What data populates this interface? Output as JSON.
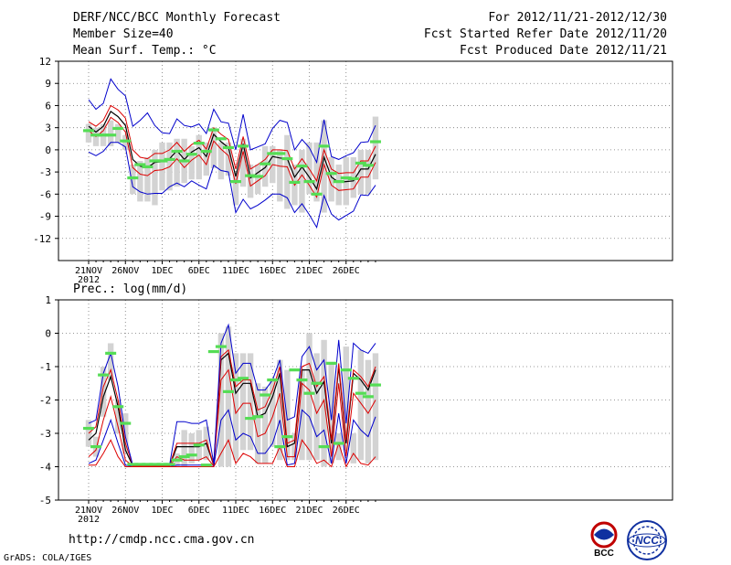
{
  "header": {
    "title": "DERF/NCC/BCC Monthly Forecast",
    "member_size": "Member Size=40",
    "variable": "Mean Surf. Temp.: °C",
    "period": "For 2012/11/21-2012/12/30",
    "fcst_started": "Fcst Started Refer Date 2012/11/20",
    "fcst_produced": "Fcst Produced Date 2012/11/21"
  },
  "footer": {
    "url": "http://cmdp.ncc.cma.gov.cn",
    "grads": "GrADS: COLA/IGES",
    "logo_bcc": "BCC",
    "logo_ncc": "NCC"
  },
  "colors": {
    "box": "#d3d3d3",
    "median": "#55dd55",
    "ensemble_mean": "#000000",
    "band_inner": "#dd0000",
    "band_outer": "#0000cc",
    "grid": "#777777"
  },
  "chart_data": [
    {
      "type": "box-ensemble",
      "title": "Mean Surf. Temp.: °C",
      "ylabel": "°C",
      "ylim": [
        -15,
        12
      ],
      "yticks": [
        -12,
        -9,
        -6,
        -3,
        0,
        3,
        6,
        9,
        12
      ],
      "xtick_labels": [
        "21NOV",
        "26NOV",
        "1DEC",
        "6DEC",
        "11DEC",
        "16DEC",
        "21DEC",
        "26DEC"
      ],
      "xtick_days": [
        0,
        5,
        10,
        15,
        20,
        25,
        30,
        35
      ],
      "year_label": "2012",
      "days": 40,
      "box_low": [
        1,
        0.5,
        0.5,
        0.5,
        1,
        0,
        -6,
        -7,
        -7,
        -7.5,
        -5.5,
        -5.5,
        -5,
        -4.5,
        -4,
        -4,
        -3.5,
        -2.5,
        -4,
        -3.5,
        -7.5,
        -5,
        -6.5,
        -6,
        -5,
        -4.5,
        -7,
        -8,
        -7.5,
        -8.5,
        -6,
        -7,
        -8.5,
        -7,
        -7.5,
        -7.5,
        -6.5,
        -6,
        -6,
        -4
      ],
      "box_high": [
        3.5,
        3,
        3.5,
        4,
        3.5,
        2,
        -2,
        -1.5,
        -1,
        0,
        1,
        1,
        1.5,
        1.5,
        0.5,
        2,
        1,
        3,
        1,
        1,
        -3,
        1.5,
        -2,
        -2,
        0.5,
        0.5,
        0,
        2,
        -2,
        0,
        1,
        1,
        4,
        -1,
        -2,
        -1,
        -1,
        0,
        0,
        4.5
      ],
      "median": [
        2.6,
        2,
        2,
        2,
        2.9,
        1.2,
        -3.8,
        -2,
        -2.3,
        -1.5,
        -1.5,
        -1.3,
        -0.2,
        -1.5,
        -0.6,
        0.9,
        -0.2,
        2.7,
        1.5,
        0.3,
        -4.3,
        0.5,
        -3.5,
        -3.6,
        -1.9,
        -0.5,
        -0.5,
        -1.2,
        -4.4,
        -2.2,
        -4.3,
        -6,
        0.5,
        -3.2,
        -4.3,
        -3.8,
        -3.9,
        -1.8,
        -2.1,
        1.1
      ],
      "series": [
        {
          "name": "mean",
          "values": [
            3.2,
            2.4,
            3.2,
            5.2,
            4.5,
            3.3,
            -1.3,
            -2.2,
            -2.4,
            -1.7,
            -1.6,
            -1.2,
            -0.1,
            -1.3,
            -0.3,
            0.3,
            -0.9,
            2.1,
            1.1,
            0.3,
            -3.6,
            0.8,
            -3.8,
            -3.1,
            -2.4,
            -0.9,
            -1.1,
            -1.2,
            -3.7,
            -2.3,
            -3.7,
            -5.3,
            -1,
            -3.7,
            -4.4,
            -4.3,
            -4.2,
            -2.6,
            -2.6,
            -0.6
          ]
        },
        {
          "name": "upper_inner",
          "values": [
            3.8,
            3.2,
            4,
            6,
            5.4,
            4.3,
            0,
            -1,
            -1.2,
            -0.5,
            -0.5,
            0,
            1,
            -0.2,
            0.7,
            1.3,
            0.1,
            3,
            2.1,
            1.4,
            -2.6,
            1.8,
            -2.6,
            -2,
            -1.3,
            0,
            0,
            -0.1,
            -2.6,
            -1.2,
            -2.6,
            -4.2,
            0,
            -2.6,
            -3.2,
            -3.1,
            -3.1,
            -1.5,
            -1.5,
            0.5
          ]
        },
        {
          "name": "lower_inner",
          "values": [
            2.6,
            1.8,
            2.6,
            4.4,
            3.7,
            2.4,
            -2.4,
            -3.3,
            -3.5,
            -2.8,
            -2.7,
            -2.3,
            -1.2,
            -2.4,
            -1.4,
            -0.7,
            -2,
            1.2,
            0.1,
            -0.8,
            -4.6,
            -0.2,
            -4.9,
            -4.2,
            -3.5,
            -2,
            -2.2,
            -2.3,
            -4.8,
            -3.4,
            -4.8,
            -6.4,
            -2,
            -4.8,
            -5.5,
            -5.4,
            -5.3,
            -3.7,
            -3.7,
            -1.7
          ]
        },
        {
          "name": "upper_outer",
          "values": [
            6.8,
            5.5,
            6.3,
            9.6,
            8.2,
            7.3,
            3.2,
            4,
            5,
            3.3,
            2.3,
            2.2,
            4.2,
            3.3,
            3.1,
            3.5,
            2.2,
            5.5,
            3.8,
            3.6,
            0,
            4.8,
            0,
            0.4,
            0.8,
            2.9,
            4,
            3.7,
            0,
            1.4,
            0.3,
            -1.7,
            4.1,
            -0.9,
            -1.3,
            -0.8,
            -0.4,
            1,
            1.1,
            3.3
          ]
        },
        {
          "name": "lower_outer",
          "values": [
            -0.3,
            -0.8,
            -0.2,
            1,
            1,
            0.4,
            -5,
            -5.7,
            -6,
            -5.9,
            -5.9,
            -5,
            -4.5,
            -5,
            -4.2,
            -4.8,
            -5.3,
            -2.1,
            -2.8,
            -3,
            -8.5,
            -6.7,
            -8,
            -7.5,
            -6.8,
            -6,
            -6,
            -6.5,
            -8.5,
            -7.3,
            -8.8,
            -10.5,
            -6.2,
            -8.7,
            -9.5,
            -8.9,
            -8.3,
            -6.1,
            -6.2,
            -4.8
          ]
        }
      ]
    },
    {
      "type": "box-ensemble",
      "title": "Prec.: log(mm/d)",
      "ylabel": "log(mm/d)",
      "ylim": [
        -5,
        1
      ],
      "yticks": [
        -5,
        -4,
        -3,
        -2,
        -1,
        0,
        1
      ],
      "xtick_labels": [
        "21NOV",
        "26NOV",
        "1DEC",
        "6DEC",
        "11DEC",
        "16DEC",
        "21DEC",
        "26DEC"
      ],
      "xtick_days": [
        0,
        5,
        10,
        15,
        20,
        25,
        30,
        35
      ],
      "year_label": "2012",
      "days": 40,
      "box_low": [
        -3.4,
        -3.7,
        -2.5,
        -1.4,
        -3,
        -3.6,
        -4,
        -4,
        -4,
        -4,
        -4,
        -4,
        -4,
        -4,
        -3.9,
        -3.8,
        -3.8,
        -3.5,
        -4,
        -4,
        -3.8,
        -3.5,
        -3.5,
        -3.9,
        -3.9,
        -3.4,
        -3.8,
        -3.8,
        -3.8,
        -3.8,
        -3.8,
        -3.8,
        -4,
        -3.9,
        -3.8,
        -3.5,
        -3.9,
        -3.8,
        -3.9,
        -3.8
      ],
      "box_high": [
        -2.6,
        -3.1,
        -1,
        -0.3,
        -2,
        -2.4,
        -3.9,
        -3.9,
        -3.9,
        -3.9,
        -3.9,
        -3.9,
        -3.6,
        -2.9,
        -3,
        -2.9,
        -2.8,
        -3.9,
        0,
        0.2,
        -0.6,
        -0.6,
        -0.6,
        -1.5,
        -1.6,
        -1.4,
        -0.8,
        -1.1,
        -3,
        -1.1,
        0,
        -0.6,
        -0.2,
        -0.9,
        -3,
        -0.4,
        -3,
        -0.5,
        -0.8,
        -0.6
      ],
      "median": [
        -2.85,
        -3.4,
        -1.25,
        -0.6,
        -2.2,
        -2.7,
        -3.93,
        -3.93,
        -3.93,
        -3.93,
        -3.93,
        -3.93,
        -3.8,
        -3.7,
        -3.65,
        -3.35,
        -3.95,
        -0.55,
        -0.4,
        -1.75,
        -1.4,
        -1.35,
        -2.55,
        -2.5,
        -1.85,
        -1.4,
        -3.4,
        -3.1,
        -1.1,
        -1.4,
        -1.8,
        -1.5,
        -3.4,
        -0.9,
        -3.3,
        -1.1,
        -1.35,
        -1.8,
        -1.9,
        -1.55
      ],
      "series": [
        {
          "name": "mean",
          "values": [
            -3.2,
            -3,
            -1.9,
            -1.3,
            -2.2,
            -3.5,
            -3.97,
            -3.97,
            -3.97,
            -3.97,
            -3.97,
            -3.97,
            -3.4,
            -3.4,
            -3.4,
            -3.4,
            -3.3,
            -3.95,
            -0.8,
            -0.6,
            -1.8,
            -1.5,
            -1.5,
            -2.5,
            -2.4,
            -1.9,
            -1.2,
            -3.4,
            -3.3,
            -1.1,
            -1.1,
            -1.8,
            -1.45,
            -3.3,
            -1,
            -3.3,
            -1.2,
            -1.4,
            -1.7,
            -1.1
          ]
        },
        {
          "name": "upper_inner",
          "values": [
            -3,
            -2.8,
            -1.6,
            -1.1,
            -2,
            -3.3,
            -3.96,
            -3.96,
            -3.96,
            -3.96,
            -3.96,
            -3.96,
            -3.3,
            -3.3,
            -3.3,
            -3.3,
            -3.2,
            -3.95,
            -0.7,
            -0.5,
            -1.6,
            -1.4,
            -1.4,
            -2.3,
            -2.2,
            -1.7,
            -1,
            -3.3,
            -3.2,
            -1,
            -0.9,
            -1.6,
            -1.3,
            -3.2,
            -0.9,
            -3.2,
            -1.1,
            -1.3,
            -1.6,
            -1
          ]
        },
        {
          "name": "lower_inner",
          "values": [
            -3.7,
            -3.5,
            -2.6,
            -1.9,
            -2.8,
            -3.8,
            -3.98,
            -3.98,
            -3.98,
            -3.98,
            -3.98,
            -3.98,
            -3.7,
            -3.8,
            -3.8,
            -3.8,
            -3.7,
            -3.98,
            -1.4,
            -1.1,
            -2.4,
            -2.1,
            -2.1,
            -3.1,
            -3,
            -2.5,
            -1.8,
            -3.7,
            -3.7,
            -1.5,
            -1.7,
            -2.4,
            -2,
            -3.7,
            -1.5,
            -3.7,
            -1.8,
            -2.1,
            -2.4,
            -2
          ]
        },
        {
          "name": "upper_outer",
          "values": [
            -2.7,
            -2.6,
            -1.2,
            -0.6,
            -1.6,
            -3.1,
            -3.95,
            -3.95,
            -3.95,
            -3.95,
            -3.95,
            -3.95,
            -2.65,
            -2.65,
            -2.7,
            -2.7,
            -2.6,
            -3.9,
            -0.3,
            0.25,
            -1.2,
            -0.9,
            -0.9,
            -1.7,
            -1.7,
            -1.4,
            -0.8,
            -2.6,
            -2.5,
            -0.7,
            -0.4,
            -1.1,
            -0.8,
            -2.6,
            -0.2,
            -2.7,
            -0.3,
            -0.5,
            -0.6,
            -0.3
          ]
        },
        {
          "name": "lower_outer",
          "values": [
            -3.9,
            -3.8,
            -3.2,
            -2.6,
            -3.3,
            -3.95,
            -4,
            -4,
            -4,
            -4,
            -4,
            -4,
            -3.95,
            -3.95,
            -3.95,
            -3.95,
            -3.95,
            -4,
            -2.6,
            -2.3,
            -3.2,
            -3,
            -3.1,
            -3.6,
            -3.6,
            -3.3,
            -2.6,
            -3.95,
            -3.9,
            -2.3,
            -2.5,
            -3.1,
            -2.9,
            -3.9,
            -2.4,
            -3.9,
            -2.6,
            -2.9,
            -3.1,
            -2.5
          ]
        },
        {
          "name": "lowest",
          "values": [
            -3.95,
            -3.95,
            -3.6,
            -3.2,
            -3.7,
            -4,
            -4,
            -4,
            -4,
            -4,
            -4,
            -4,
            -4,
            -4,
            -4,
            -4,
            -4,
            -4,
            -3.6,
            -3.2,
            -3.9,
            -3.6,
            -3.7,
            -3.9,
            -3.9,
            -3.9,
            -3.4,
            -4,
            -4,
            -3.2,
            -3.5,
            -3.9,
            -3.8,
            -4,
            -3.3,
            -4,
            -3.6,
            -3.9,
            -3.95,
            -3.7
          ]
        }
      ]
    }
  ]
}
